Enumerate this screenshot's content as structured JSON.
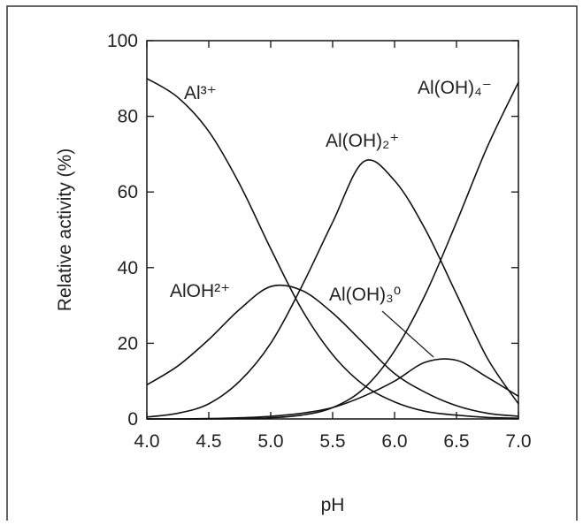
{
  "chart_data": {
    "type": "line",
    "x_label": "pH",
    "y_label": "Relative activity (%)",
    "x": [
      4.0,
      4.25,
      4.5,
      4.75,
      5.0,
      5.25,
      5.5,
      5.75,
      6.0,
      6.25,
      6.5,
      6.75,
      7.0
    ],
    "series": [
      {
        "name": "Al³⁺",
        "color": "#111111",
        "values": [
          90,
          85,
          76,
          62,
          45,
          29,
          17,
          9,
          4.5,
          2,
          1,
          0.4,
          0.2
        ]
      },
      {
        "name": "AlOH²⁺",
        "color": "#111111",
        "values": [
          9,
          14,
          21,
          29,
          35,
          34,
          28,
          20,
          12,
          7,
          3.5,
          1.5,
          0.7
        ]
      },
      {
        "name": "Al(OH)₂⁺",
        "color": "#111111",
        "values": [
          0.5,
          1.5,
          4,
          10,
          20,
          35,
          52,
          68,
          63,
          50,
          33,
          16,
          4
        ]
      },
      {
        "name": "Al(OH)₃⁰",
        "color": "#111111",
        "values": [
          0,
          0,
          0.1,
          0.3,
          0.7,
          1.5,
          3,
          6,
          10,
          15,
          15.5,
          11,
          6
        ]
      },
      {
        "name": "Al(OH)₄⁻",
        "color": "#111111",
        "values": [
          0,
          0,
          0,
          0.1,
          0.3,
          1,
          3,
          8,
          18,
          33,
          52,
          72,
          89
        ]
      }
    ],
    "xlim": [
      4.0,
      7.0
    ],
    "xticks": [
      {
        "value": 4.0,
        "label": "4.0"
      },
      {
        "value": 4.5,
        "label": "4.5"
      },
      {
        "value": 5.0,
        "label": "5.0"
      },
      {
        "value": 5.5,
        "label": "5.5"
      },
      {
        "value": 6.0,
        "label": "6.0"
      },
      {
        "value": 6.5,
        "label": "6.5"
      },
      {
        "value": 7.0,
        "label": "7.0"
      }
    ],
    "ylim": [
      0,
      100
    ],
    "yticks": [
      0,
      20,
      40,
      60,
      80,
      100
    ]
  }
}
